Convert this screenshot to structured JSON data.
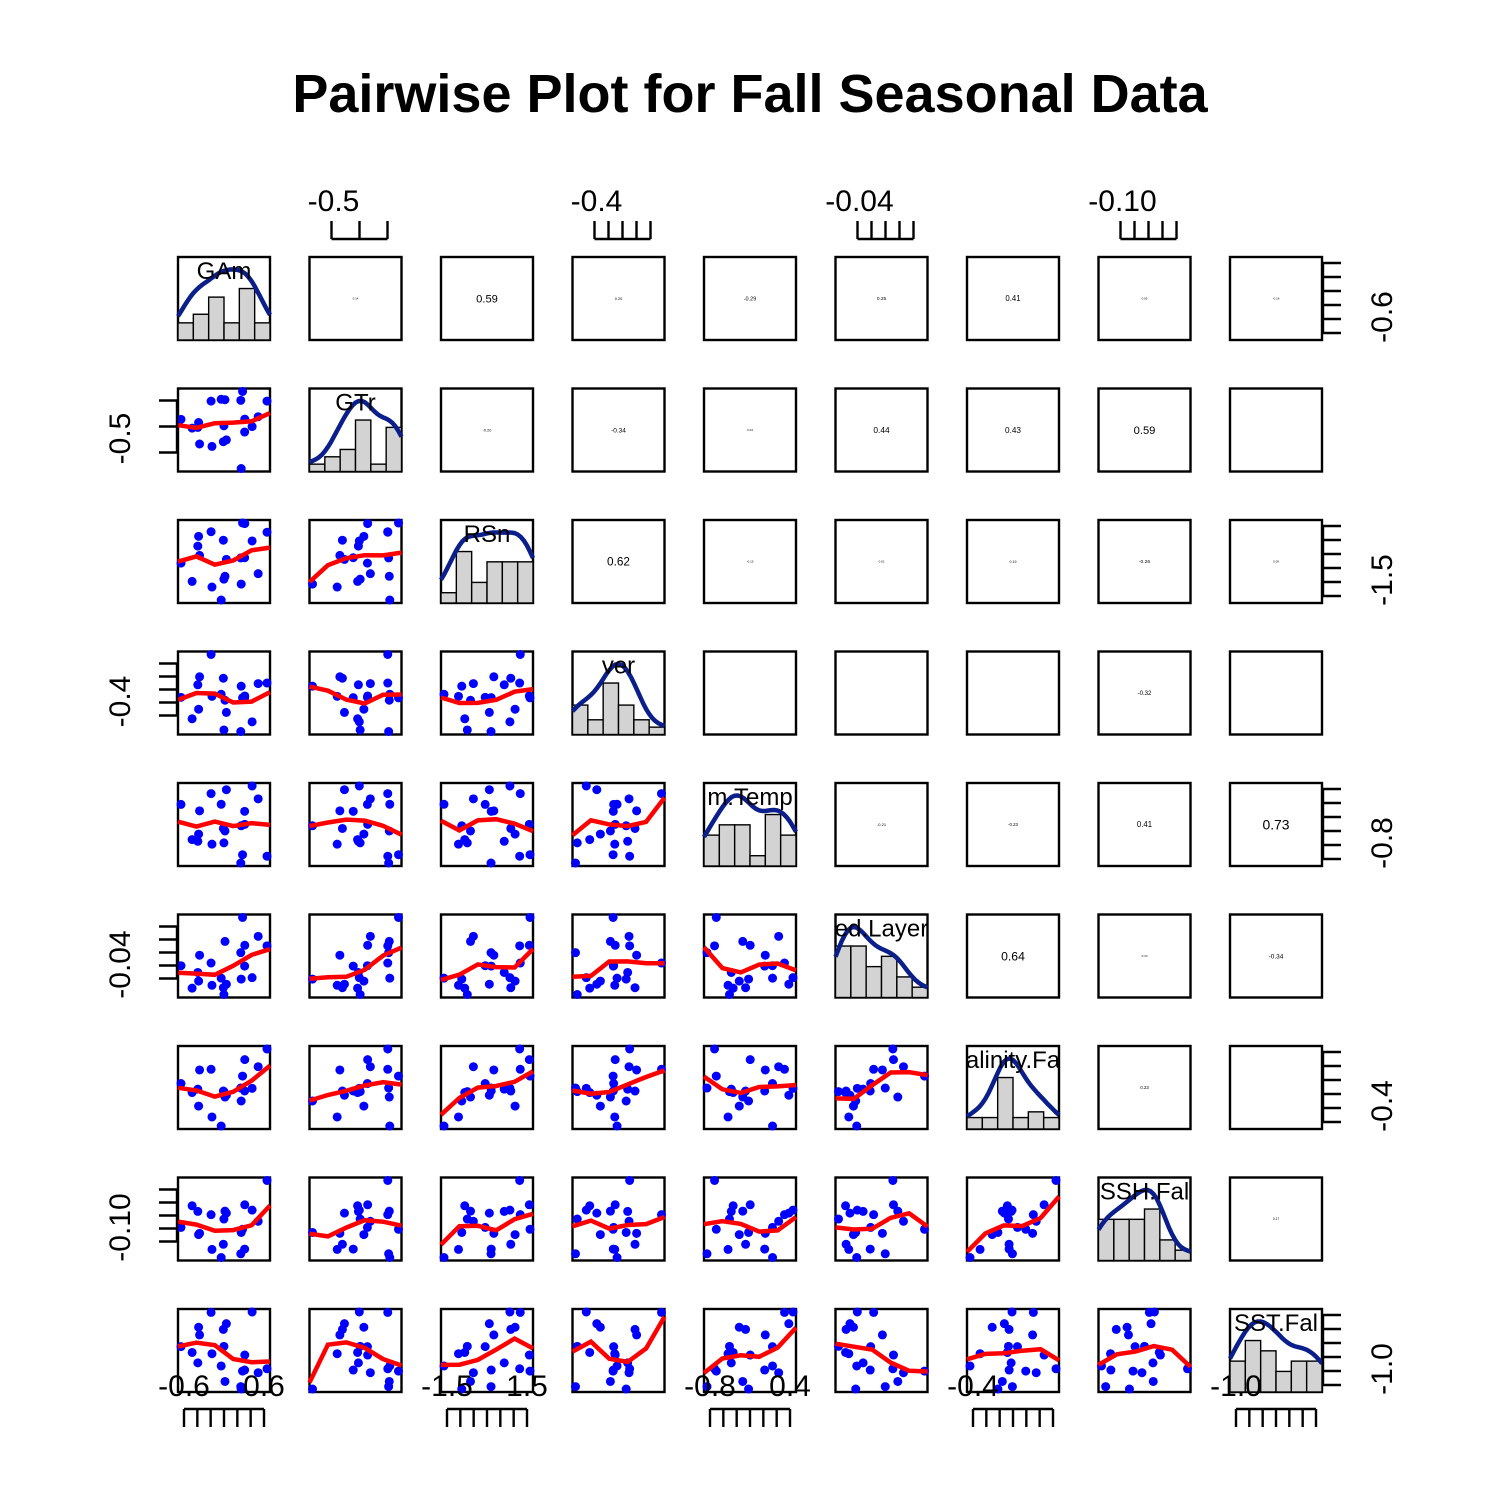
{
  "chart_data": {
    "type": "scatter",
    "title": "Pairwise Plot for Fall Seasonal Data",
    "variables": [
      "GAm",
      "GTr",
      "RSn",
      "ver",
      "m.Temp",
      "ed.Layer",
      "alinity.Fa",
      "SSH.Fal",
      "SST.Fal"
    ],
    "correlations": [
      [
        null,
        0.14,
        0.59,
        0.2,
        -0.29,
        0.25,
        0.41,
        0.05,
        -0.16
      ],
      [
        null,
        null,
        -0.2,
        -0.34,
        0.04,
        0.44,
        0.43,
        0.59,
        null
      ],
      [
        null,
        null,
        null,
        0.62,
        -0.15,
        0.01,
        0.19,
        -0.26,
        0.09
      ],
      [
        null,
        null,
        null,
        null,
        null,
        null,
        null,
        -0.32,
        null
      ],
      [
        null,
        null,
        null,
        null,
        null,
        -0.21,
        -0.23,
        0.41,
        0.73
      ],
      [
        null,
        null,
        null,
        null,
        null,
        null,
        0.64,
        0.1,
        -0.34
      ],
      [
        null,
        null,
        null,
        null,
        null,
        null,
        null,
        0.23,
        null
      ],
      [
        null,
        null,
        null,
        null,
        null,
        null,
        null,
        null,
        0.17
      ]
    ],
    "top_axis": [
      {
        "column": 2,
        "label": "-0.5"
      },
      {
        "column": 4,
        "label": "-0.4"
      },
      {
        "column": 6,
        "label": "-0.04"
      },
      {
        "column": 8,
        "label": "-0.10"
      }
    ],
    "bottom_axis": [
      {
        "column": 1,
        "labels": [
          "-0.6",
          "0.6"
        ]
      },
      {
        "column": 3,
        "labels": [
          "-1.5",
          "1.5"
        ]
      },
      {
        "column": 5,
        "labels": [
          "-0.8",
          "0.4"
        ]
      },
      {
        "column": 7,
        "labels": [
          "-0.4"
        ]
      },
      {
        "column": 9,
        "labels": [
          "-1.0"
        ]
      }
    ],
    "left_axis": [
      {
        "row": 2,
        "label": "-0.5"
      },
      {
        "row": 4,
        "label": "-0.4"
      },
      {
        "row": 6,
        "label": "-0.04"
      },
      {
        "row": 8,
        "label": "-0.10"
      }
    ],
    "right_axis": [
      {
        "row": 1,
        "label": "-0.6"
      },
      {
        "row": 3,
        "label": "-1.5"
      },
      {
        "row": 5,
        "label": "-0.8"
      },
      {
        "row": 7,
        "label": "-0.4"
      },
      {
        "row": 9,
        "label": "-1.0"
      }
    ],
    "colors": {
      "points": "#0000ff",
      "smoother": "#ff0000",
      "density": "#0b1f8c",
      "histogram_fill": "#d3d3d3",
      "frame": "#000000"
    },
    "grid": false,
    "legend": "none"
  }
}
